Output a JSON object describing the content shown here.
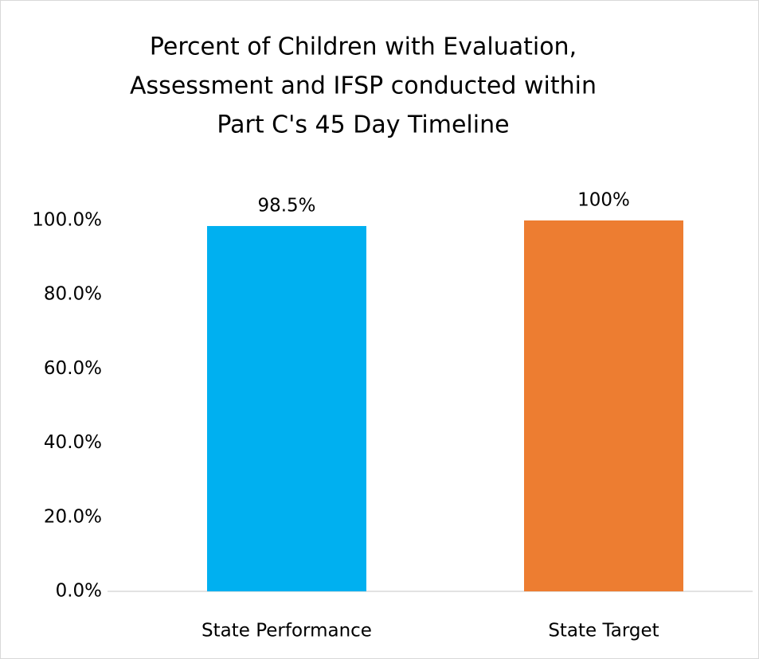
{
  "chart_data": {
    "type": "bar",
    "title": [
      "Percent of Children with Evaluation,",
      "Assessment and IFSP conducted within",
      "Part C's 45 Day Timeline"
    ],
    "categories": [
      "State Performance",
      "State Target"
    ],
    "values": [
      98.5,
      100
    ],
    "value_labels": [
      "98.5%",
      "100%"
    ],
    "colors": [
      "#00b0f0",
      "#ed7d31"
    ],
    "ylim": [
      0,
      100
    ],
    "yticks": [
      {
        "value": 0,
        "label": "0.0%"
      },
      {
        "value": 20,
        "label": "20.0%"
      },
      {
        "value": 40,
        "label": "40.0%"
      },
      {
        "value": 60,
        "label": "60.0%"
      },
      {
        "value": 80,
        "label": "80.0%"
      },
      {
        "value": 100,
        "label": "100.0%"
      }
    ],
    "grid": false
  }
}
